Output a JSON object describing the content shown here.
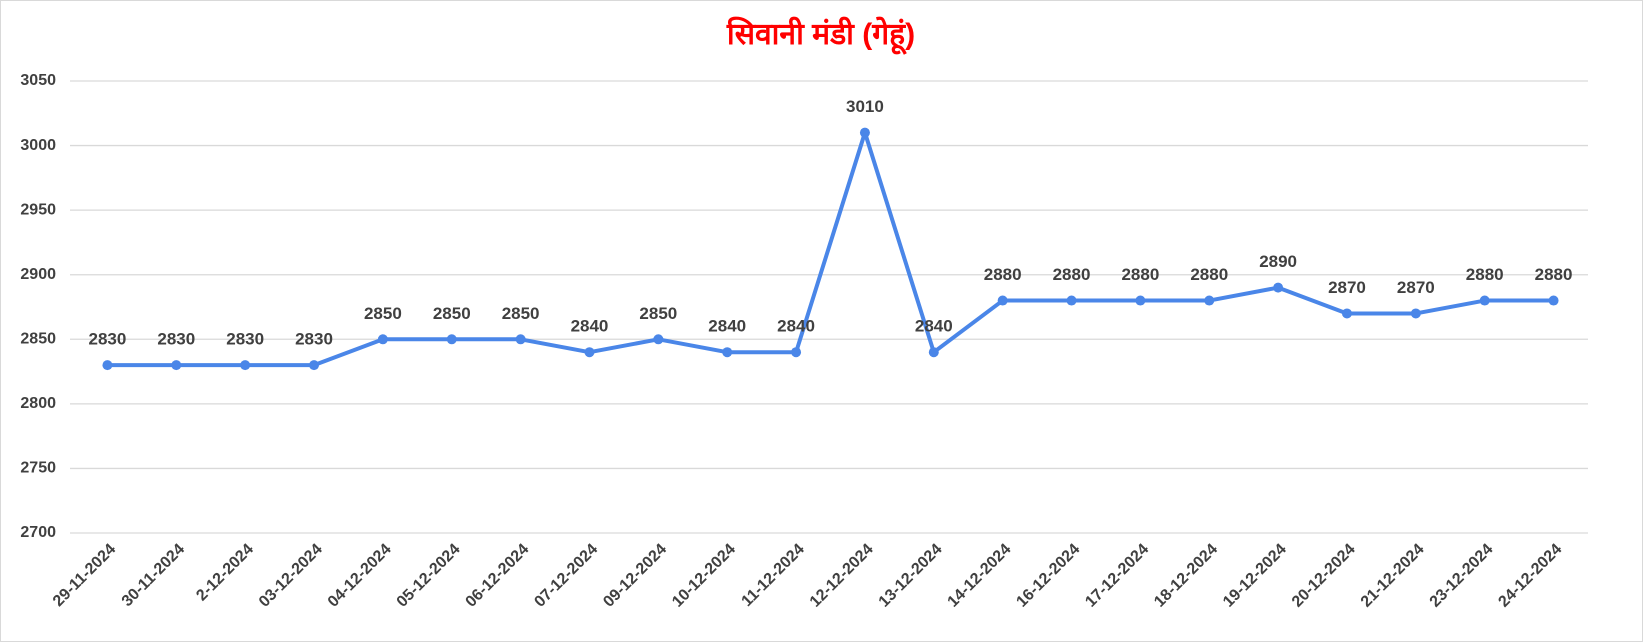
{
  "chart_data": {
    "type": "line",
    "title": "सिवानी मंडी (गेहूं)",
    "categories": [
      "29-11-2024",
      "30-11-2024",
      "2-12-2024",
      "03-12-2024",
      "04-12-2024",
      "05-12-2024",
      "06-12-2024",
      "07-12-2024",
      "09-12-2024",
      "10-12-2024",
      "11-12-2024",
      "12-12-2024",
      "13-12-2024",
      "14-12-2024",
      "16-12-2024",
      "17-12-2024",
      "18-12-2024",
      "19-12-2024",
      "20-12-2024",
      "21-12-2024",
      "23-12-2024",
      "24-12-2024"
    ],
    "values": [
      2830,
      2830,
      2830,
      2830,
      2850,
      2850,
      2850,
      2840,
      2850,
      2840,
      2840,
      3010,
      2840,
      2880,
      2880,
      2880,
      2880,
      2890,
      2870,
      2870,
      2880,
      2880
    ],
    "color": "#4a86e8",
    "title_color": "#ff0000",
    "ylim": [
      2700,
      3050
    ],
    "yticks": [
      2700,
      2750,
      2800,
      2850,
      2900,
      2950,
      3000,
      3050
    ],
    "grid": true
  }
}
